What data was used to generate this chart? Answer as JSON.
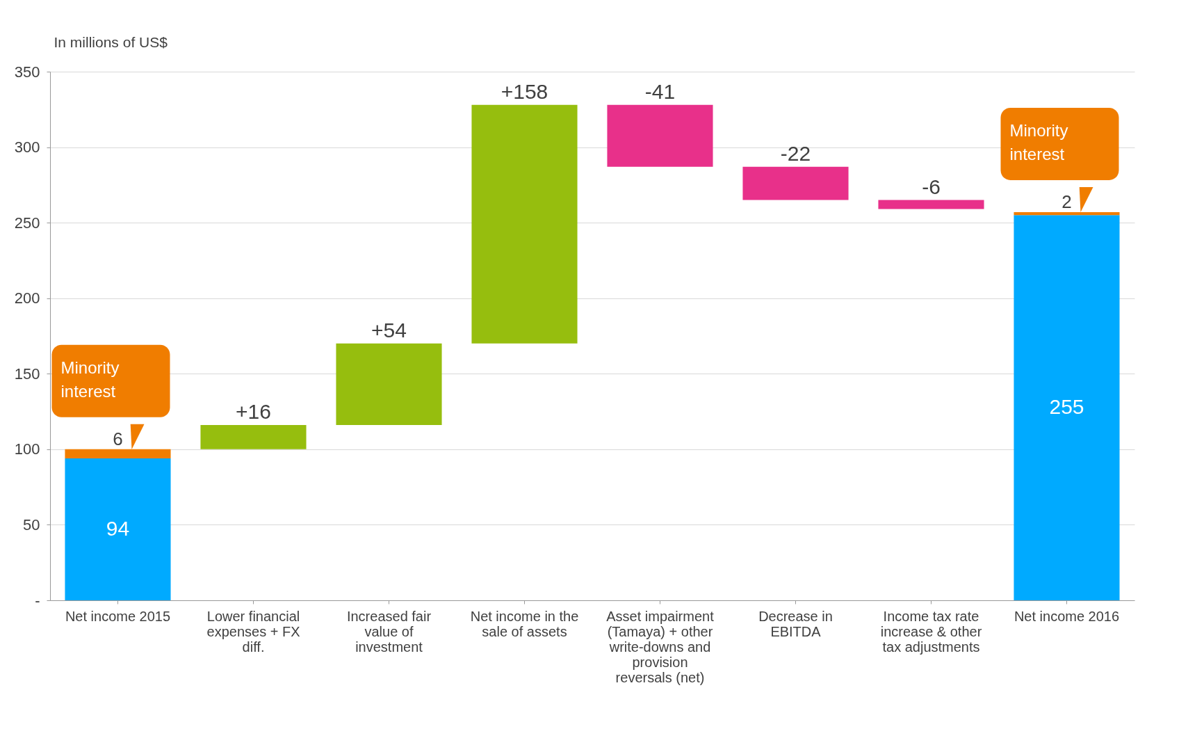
{
  "chart_data": {
    "type": "bar",
    "ylabel": "In millions of US$",
    "categories": [
      "Net income 2015",
      "Lower financial expenses + FX diff.",
      "Increased fair value of investment",
      "Net income in the sale of assets",
      "Asset impairment (Tamaya) + other write-downs and provision reversals (net)",
      "Decrease in EBITDA",
      "Income tax rate increase & other tax adjustments",
      "Net income 2016"
    ],
    "series": [
      {
        "color": "#00aaff",
        "values": [
          94,
          null,
          null,
          null,
          null,
          null,
          null,
          255
        ],
        "base": [
          0,
          null,
          null,
          null,
          null,
          null,
          null,
          0
        ],
        "value_labels": [
          "94",
          null,
          null,
          null,
          null,
          null,
          null,
          "255"
        ]
      },
      {
        "color": "#f07d00",
        "values": [
          6,
          null,
          null,
          null,
          null,
          null,
          null,
          2
        ],
        "base": [
          94,
          null,
          null,
          null,
          null,
          null,
          null,
          255
        ],
        "value_labels": [
          "6",
          null,
          null,
          null,
          null,
          null,
          null,
          "2"
        ]
      },
      {
        "color": "#96be0e",
        "values": [
          null,
          16,
          54,
          158,
          null,
          null,
          null,
          null
        ],
        "base": [
          null,
          100,
          116,
          170,
          null,
          null,
          null,
          null
        ],
        "value_labels": [
          null,
          "+16",
          "+54",
          "+158",
          null,
          null,
          null,
          null
        ]
      },
      {
        "color": "#e8308a",
        "values": [
          null,
          null,
          null,
          null,
          -41,
          -22,
          -6,
          null
        ],
        "base": [
          null,
          null,
          null,
          null,
          328,
          287,
          265,
          null
        ],
        "value_labels": [
          null,
          null,
          null,
          null,
          "-41",
          "-22",
          "-6",
          null
        ]
      }
    ],
    "ylim": [
      0,
      350
    ],
    "yticks": [
      {
        "value": 0,
        "label": "-"
      },
      50,
      100,
      150,
      200,
      250,
      300,
      350
    ],
    "grid": "y",
    "annotations": [
      {
        "text": "Minority interest",
        "x": "Net income 2015",
        "y": 100
      },
      {
        "text": "Minority interest",
        "x": "Net income 2016",
        "y": 257
      }
    ]
  }
}
